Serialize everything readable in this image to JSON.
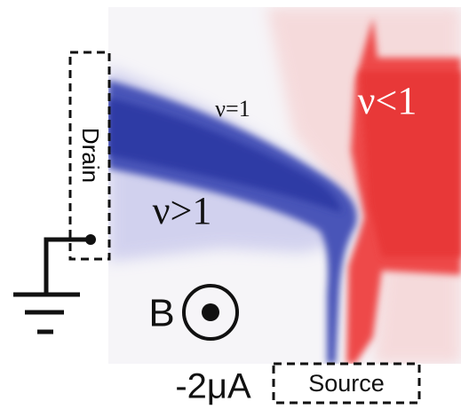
{
  "labels": {
    "drain": "Drain",
    "filling_equal": "ν=1",
    "filling_less": "ν<1",
    "filling_greater": "ν>1",
    "field": "B",
    "current": "-2μA",
    "source": "Source"
  }
}
